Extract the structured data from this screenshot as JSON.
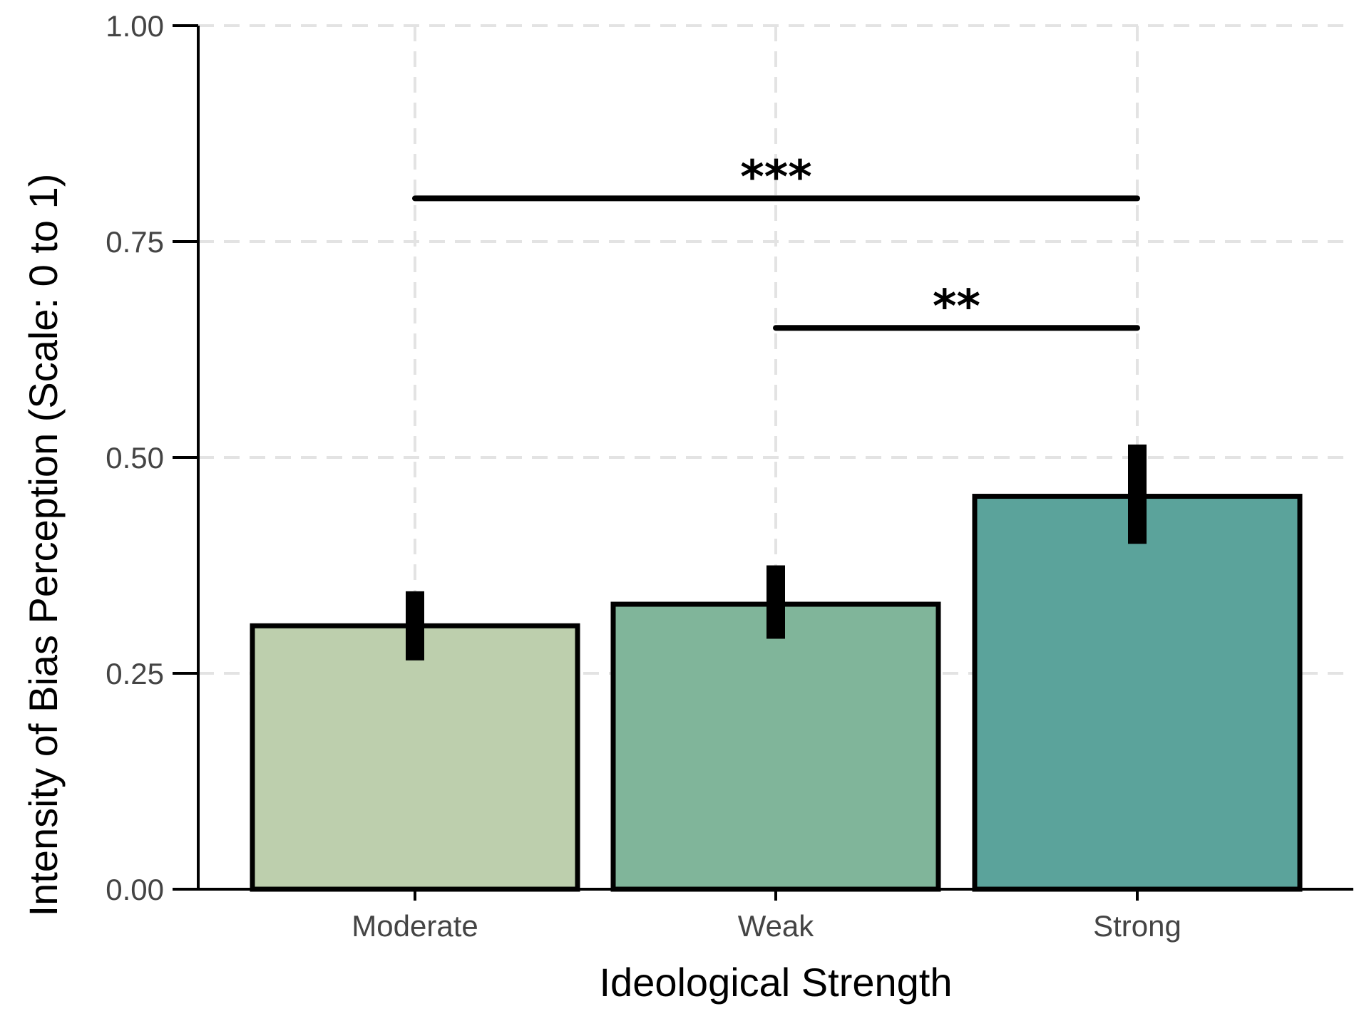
{
  "chart_data": {
    "type": "bar",
    "categories": [
      "Moderate",
      "Weak",
      "Strong"
    ],
    "values": [
      0.305,
      0.33,
      0.455
    ],
    "error_low": [
      0.265,
      0.29,
      0.4
    ],
    "error_high": [
      0.345,
      0.375,
      0.515
    ],
    "colors": [
      "#bdcfad",
      "#80b59a",
      "#5ba39b"
    ],
    "title": "",
    "xlabel": "Ideological Strength",
    "ylabel": "Intensity of Bias Perception (Scale: 0 to 1)",
    "ylim": [
      0,
      1
    ],
    "yticks": [
      0,
      0.25,
      0.5,
      0.75,
      1
    ],
    "ytick_labels": [
      "0.00",
      "0.25",
      "0.50",
      "0.75",
      "1.00"
    ],
    "grid": true,
    "significance": [
      {
        "from": "Moderate",
        "to": "Strong",
        "y": 0.8,
        "label": "***"
      },
      {
        "from": "Weak",
        "to": "Strong",
        "y": 0.65,
        "label": "**"
      }
    ]
  }
}
